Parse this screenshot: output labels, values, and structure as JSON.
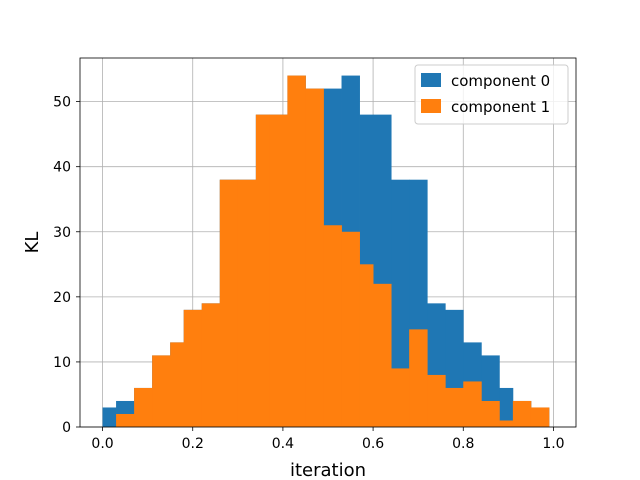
{
  "chart_data": {
    "type": "bar",
    "subtype": "histogram",
    "title": "",
    "xlabel": "iteration",
    "ylabel": "KL",
    "xlim": [
      -0.05,
      1.05
    ],
    "ylim": [
      0,
      56.7
    ],
    "xticks": [
      "0.0",
      "0.2",
      "0.4",
      "0.6",
      "0.8",
      "1.0"
    ],
    "yticks": [
      "0",
      "10",
      "20",
      "30",
      "40",
      "50"
    ],
    "grid": true,
    "legend_position": "top-right",
    "bin_edges": [
      0.0,
      0.0381,
      0.0762,
      0.1143,
      0.1524,
      0.1905,
      0.2286,
      0.2667,
      0.3048,
      0.3429,
      0.381,
      0.4191,
      0.4572,
      0.4953,
      0.5334,
      0.5715,
      0.6096,
      0.6477,
      0.6858,
      0.7239,
      0.762,
      0.8001,
      0.8382,
      0.8763,
      0.9144,
      0.9525,
      0.9906
    ],
    "series": [
      {
        "name": "component 0",
        "color": "#1f77b4",
        "bins": [
          {
            "x0": 0.0,
            "x1": 0.03,
            "value": 3
          },
          {
            "x0": 0.03,
            "x1": 0.07,
            "value": 4
          },
          {
            "x0": 0.07,
            "x1": 0.11,
            "value": 6
          },
          {
            "x0": 0.11,
            "x1": 0.15,
            "value": 11
          },
          {
            "x0": 0.15,
            "x1": 0.18,
            "value": 13
          },
          {
            "x0": 0.18,
            "x1": 0.22,
            "value": 18
          },
          {
            "x0": 0.22,
            "x1": 0.26,
            "value": 19
          },
          {
            "x0": 0.26,
            "x1": 0.3,
            "value": 38
          },
          {
            "x0": 0.3,
            "x1": 0.34,
            "value": 38
          },
          {
            "x0": 0.34,
            "x1": 0.37,
            "value": 48
          },
          {
            "x0": 0.37,
            "x1": 0.41,
            "value": 48
          },
          {
            "x0": 0.41,
            "x1": 0.45,
            "value": 54
          },
          {
            "x0": 0.45,
            "x1": 0.49,
            "value": 52
          },
          {
            "x0": 0.49,
            "x1": 0.53,
            "value": 52
          },
          {
            "x0": 0.53,
            "x1": 0.57,
            "value": 54
          },
          {
            "x0": 0.57,
            "x1": 0.6,
            "value": 48
          },
          {
            "x0": 0.6,
            "x1": 0.64,
            "value": 48
          },
          {
            "x0": 0.64,
            "x1": 0.68,
            "value": 38
          },
          {
            "x0": 0.68,
            "x1": 0.72,
            "value": 38
          },
          {
            "x0": 0.72,
            "x1": 0.76,
            "value": 19
          },
          {
            "x0": 0.76,
            "x1": 0.8,
            "value": 18
          },
          {
            "x0": 0.8,
            "x1": 0.84,
            "value": 13
          },
          {
            "x0": 0.84,
            "x1": 0.88,
            "value": 11
          },
          {
            "x0": 0.88,
            "x1": 0.91,
            "value": 6
          },
          {
            "x0": 0.91,
            "x1": 0.95,
            "value": 4
          },
          {
            "x0": 0.95,
            "x1": 0.99,
            "value": 3
          }
        ]
      },
      {
        "name": "component 1",
        "color": "#ff7f0e",
        "bins": [
          {
            "x0": 0.03,
            "x1": 0.07,
            "value": 2
          },
          {
            "x0": 0.07,
            "x1": 0.11,
            "value": 6
          },
          {
            "x0": 0.11,
            "x1": 0.15,
            "value": 11
          },
          {
            "x0": 0.15,
            "x1": 0.18,
            "value": 13
          },
          {
            "x0": 0.18,
            "x1": 0.22,
            "value": 18
          },
          {
            "x0": 0.22,
            "x1": 0.26,
            "value": 19
          },
          {
            "x0": 0.26,
            "x1": 0.3,
            "value": 38
          },
          {
            "x0": 0.3,
            "x1": 0.34,
            "value": 38
          },
          {
            "x0": 0.34,
            "x1": 0.37,
            "value": 48
          },
          {
            "x0": 0.37,
            "x1": 0.41,
            "value": 48
          },
          {
            "x0": 0.41,
            "x1": 0.45,
            "value": 54
          },
          {
            "x0": 0.45,
            "x1": 0.49,
            "value": 52
          },
          {
            "x0": 0.49,
            "x1": 0.53,
            "value": 31
          },
          {
            "x0": 0.53,
            "x1": 0.57,
            "value": 30
          },
          {
            "x0": 0.57,
            "x1": 0.6,
            "value": 25
          },
          {
            "x0": 0.6,
            "x1": 0.64,
            "value": 22
          },
          {
            "x0": 0.64,
            "x1": 0.68,
            "value": 9
          },
          {
            "x0": 0.68,
            "x1": 0.72,
            "value": 15
          },
          {
            "x0": 0.72,
            "x1": 0.76,
            "value": 8
          },
          {
            "x0": 0.76,
            "x1": 0.8,
            "value": 6
          },
          {
            "x0": 0.8,
            "x1": 0.84,
            "value": 7
          },
          {
            "x0": 0.84,
            "x1": 0.88,
            "value": 4
          },
          {
            "x0": 0.88,
            "x1": 0.91,
            "value": 1
          },
          {
            "x0": 0.91,
            "x1": 0.95,
            "value": 4
          },
          {
            "x0": 0.95,
            "x1": 0.99,
            "value": 3
          }
        ]
      }
    ]
  }
}
